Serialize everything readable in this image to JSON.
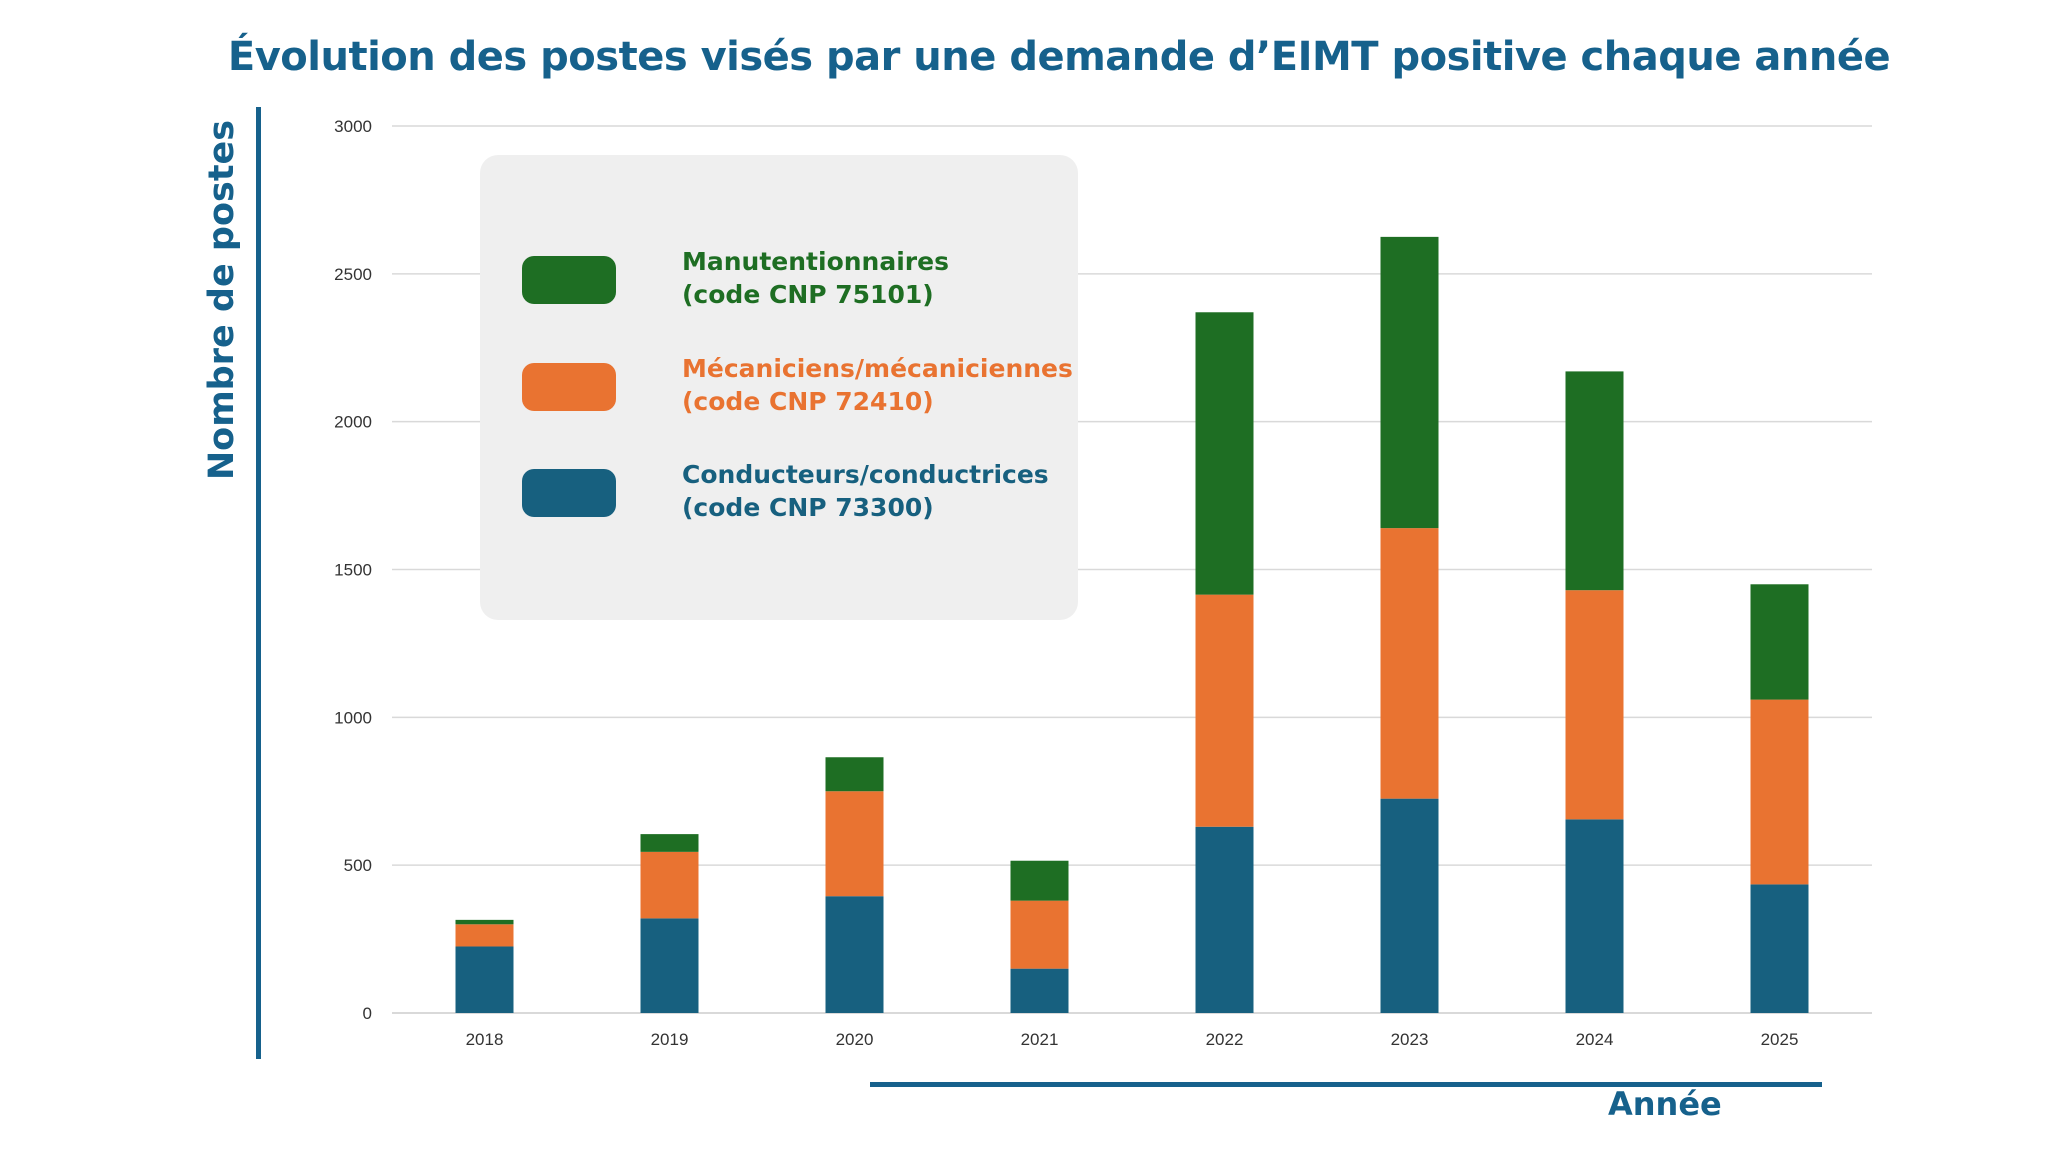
{
  "title": "Évolution des postes visés par une demande d’EIMT positive chaque année",
  "colors": {
    "accent": "#16618c",
    "manutentionnaires": "#1e6e23",
    "mecaniciens": "#e97331",
    "conducteurs": "#17607f",
    "legend_bg": "#efefef",
    "grid": "#d9d9d9"
  },
  "legend": {
    "items": [
      {
        "name": "Manutentionnaires",
        "code": "(code CNP 75101)",
        "color": "#1e6e23"
      },
      {
        "name": "Mécaniciens/mécaniciennes",
        "code": "(code CNP 72410)",
        "color": "#e97331"
      },
      {
        "name": "Conducteurs/conductrices",
        "code": "(code CNP 73300)",
        "color": "#17607f"
      }
    ]
  },
  "chart_data": {
    "type": "bar",
    "stacked": true,
    "title": "Évolution des postes visés par une demande d’EIMT positive chaque année",
    "xlabel": "Année",
    "ylabel": "Nombre de postes",
    "categories": [
      "2018",
      "2019",
      "2020",
      "2021",
      "2022",
      "2023",
      "2024",
      "2025"
    ],
    "ylim": [
      0,
      3000
    ],
    "yticks": [
      0,
      500,
      1000,
      1500,
      2000,
      2500,
      3000
    ],
    "grid": true,
    "legend_position": "top-left",
    "series": [
      {
        "name": "Conducteurs/conductrices (code CNP 73300)",
        "color": "#17607f",
        "values": [
          225,
          320,
          395,
          150,
          630,
          725,
          655,
          435
        ]
      },
      {
        "name": "Mécaniciens/mécaniciennes (code CNP 72410)",
        "color": "#e97331",
        "values": [
          75,
          225,
          355,
          230,
          785,
          915,
          775,
          625
        ]
      },
      {
        "name": "Manutentionnaires (code CNP 75101)",
        "color": "#1e6e23",
        "values": [
          15,
          60,
          115,
          135,
          955,
          985,
          740,
          390
        ]
      }
    ]
  }
}
